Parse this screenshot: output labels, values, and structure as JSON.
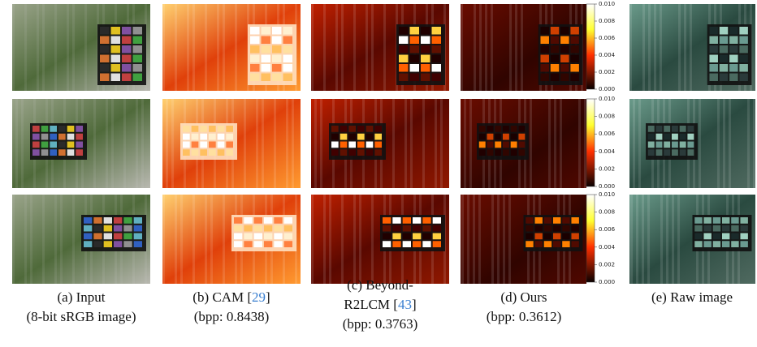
{
  "columns": [
    {
      "lines": [
        [
          {
            "text": "(a) Input"
          }
        ],
        [
          {
            "text": "(8-bit sRGB image)"
          }
        ]
      ]
    },
    {
      "lines": [
        [
          {
            "text": "(b) CAM ["
          },
          {
            "text": "29",
            "ref": true
          },
          {
            "text": "]"
          }
        ],
        [
          {
            "text": "(bpp: 0.8438)"
          }
        ]
      ]
    },
    {
      "lines": [
        [
          {
            "text": "(c) Beyond-"
          }
        ],
        [
          {
            "text": "R2LCM ["
          },
          {
            "text": "43",
            "ref": true
          },
          {
            "text": "]"
          }
        ],
        [
          {
            "text": "(bpp: 0.3763)"
          }
        ]
      ]
    },
    {
      "lines": [
        [
          {
            "text": "(d) Ours"
          }
        ],
        [
          {
            "text": "(bpp: 0.3612)"
          }
        ]
      ]
    },
    {
      "lines": [
        [
          {
            "text": "(e) Raw image"
          }
        ]
      ]
    }
  ],
  "colorbar": {
    "range": [
      0,
      0.01
    ],
    "ticks": [
      {
        "value": 0,
        "label": "0.000"
      },
      {
        "value": 0.002,
        "label": "0.002"
      },
      {
        "value": 0.004,
        "label": "0.004"
      },
      {
        "value": 0.006,
        "label": "0.006"
      },
      {
        "value": 0.008,
        "label": "0.008"
      },
      {
        "value": 0.01,
        "label": "0.010"
      }
    ]
  }
}
